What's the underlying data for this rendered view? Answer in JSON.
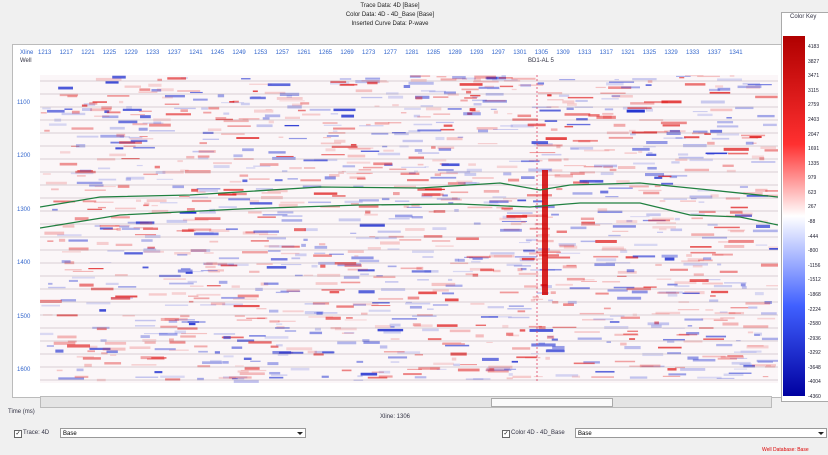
{
  "header": {
    "lines": [
      "Trace Data: 4D [Base]",
      "Color Data: 4D - 4D_Base [Base]",
      "Inserted Curve Data: P-wave"
    ]
  },
  "axis": {
    "xline_label": "Xline",
    "well_label": "Well",
    "xlines": [
      "1213",
      "1217",
      "1221",
      "1225",
      "1229",
      "1233",
      "1237",
      "1241",
      "1245",
      "1249",
      "1253",
      "1257",
      "1261",
      "1265",
      "1269",
      "1273",
      "1277",
      "1281",
      "1285",
      "1289",
      "1293",
      "1297",
      "1301",
      "1305",
      "1309",
      "1313",
      "1317",
      "1321",
      "1325",
      "1329",
      "1333",
      "1337",
      "1341"
    ],
    "well_name": "BD1-AL 5",
    "times": [
      "1100",
      "1200",
      "1300",
      "1400",
      "1500",
      "1600"
    ],
    "time_unit": "Time (ms)",
    "current_xline": "Xline: 1306"
  },
  "color_key": {
    "title": "Color Key",
    "labels": [
      "4183",
      "3827",
      "3471",
      "3115",
      "2759",
      "2403",
      "2047",
      "1691",
      "1335",
      "979",
      "623",
      "267",
      "-88",
      "-444",
      "-800",
      "-1156",
      "-1512",
      "-1868",
      "-2224",
      "-2580",
      "-2936",
      "-3292",
      "-3648",
      "-4004",
      "-4360"
    ]
  },
  "controls": {
    "trace_label": "Trace: 4D",
    "trace_value": "Base",
    "color_label": "Color 4D - 4D_Base",
    "color_value": "Base",
    "status": "Well Database: Base"
  }
}
